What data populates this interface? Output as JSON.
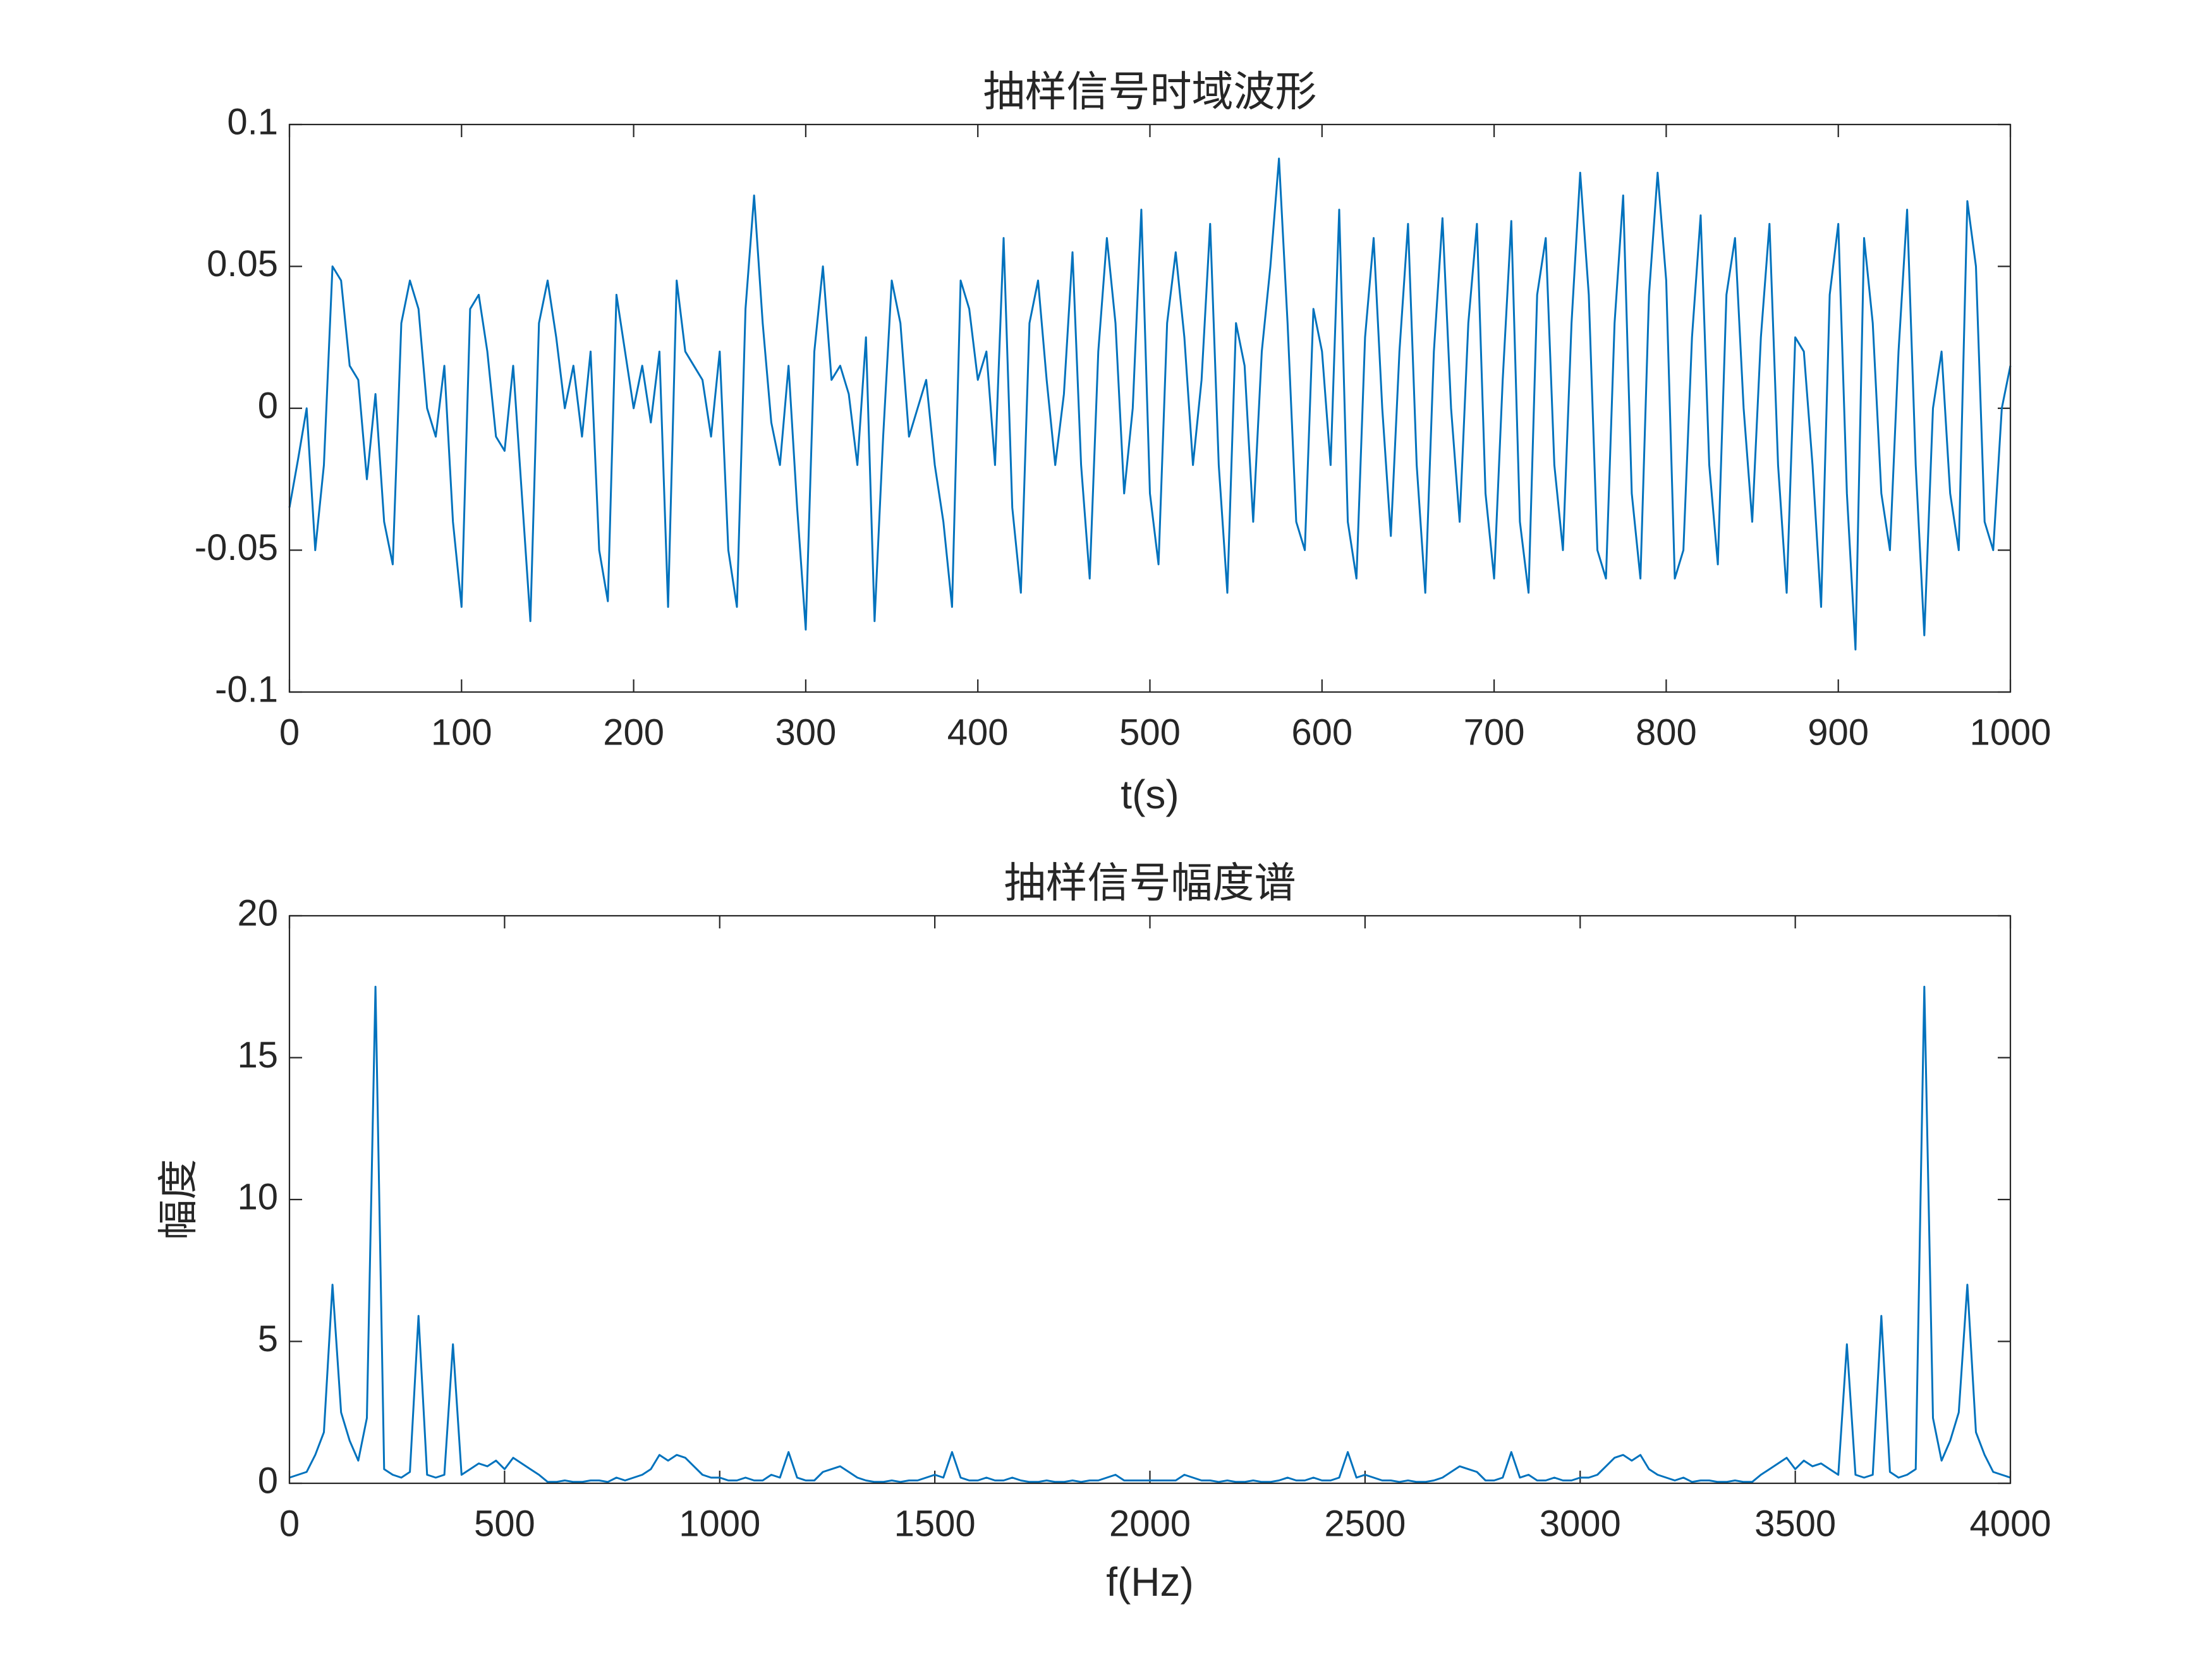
{
  "chart_data": [
    {
      "type": "line",
      "title": "抽样信号时域波形",
      "xlabel": "t(s)",
      "x": [
        0,
        5,
        10,
        15,
        20,
        25,
        30,
        35,
        40,
        45,
        50,
        55,
        60,
        65,
        70,
        75,
        80,
        85,
        90,
        95,
        100,
        105,
        110,
        115,
        120,
        125,
        130,
        135,
        140,
        145,
        150,
        155,
        160,
        165,
        170,
        175,
        180,
        185,
        190,
        195,
        200,
        205,
        210,
        215,
        220,
        225,
        230,
        235,
        240,
        245,
        250,
        255,
        260,
        265,
        270,
        275,
        280,
        285,
        290,
        295,
        300,
        305,
        310,
        315,
        320,
        325,
        330,
        335,
        340,
        345,
        350,
        355,
        360,
        365,
        370,
        375,
        380,
        385,
        390,
        395,
        400,
        405,
        410,
        415,
        420,
        425,
        430,
        435,
        440,
        445,
        450,
        455,
        460,
        465,
        470,
        475,
        480,
        485,
        490,
        495,
        500,
        505,
        510,
        515,
        520,
        525,
        530,
        535,
        540,
        545,
        550,
        555,
        560,
        565,
        570,
        575,
        580,
        585,
        590,
        595,
        600,
        605,
        610,
        615,
        620,
        625,
        630,
        635,
        640,
        645,
        650,
        655,
        660,
        665,
        670,
        675,
        680,
        685,
        690,
        695,
        700,
        705,
        710,
        715,
        720,
        725,
        730,
        735,
        740,
        745,
        750,
        755,
        760,
        765,
        770,
        775,
        780,
        785,
        790,
        795,
        800,
        805,
        810,
        815,
        820,
        825,
        830,
        835,
        840,
        845,
        850,
        855,
        860,
        865,
        870,
        875,
        880,
        885,
        890,
        895,
        900,
        905,
        910,
        915,
        920,
        925,
        930,
        935,
        940,
        945,
        950,
        955,
        960,
        965,
        970,
        975,
        980,
        985,
        990,
        995,
        1000
      ],
      "series": [
        {
          "color": "#0072bd",
          "values": [
            -0.035,
            -0.018,
            0.0,
            -0.05,
            -0.02,
            0.05,
            0.045,
            0.015,
            0.01,
            -0.025,
            0.005,
            -0.04,
            -0.055,
            0.03,
            0.045,
            0.035,
            0.0,
            -0.01,
            0.015,
            -0.04,
            -0.07,
            0.035,
            0.04,
            0.02,
            -0.01,
            -0.015,
            0.015,
            -0.03,
            -0.075,
            0.03,
            0.045,
            0.025,
            0.0,
            0.015,
            -0.01,
            0.02,
            -0.05,
            -0.068,
            0.04,
            0.02,
            0.0,
            0.015,
            -0.005,
            0.02,
            -0.07,
            0.045,
            0.02,
            0.015,
            0.01,
            -0.01,
            0.02,
            -0.05,
            -0.07,
            0.035,
            0.075,
            0.03,
            -0.005,
            -0.02,
            0.015,
            -0.035,
            -0.078,
            0.02,
            0.05,
            0.01,
            0.015,
            0.005,
            -0.02,
            0.025,
            -0.075,
            -0.01,
            0.045,
            0.03,
            -0.01,
            0.0,
            0.01,
            -0.02,
            -0.04,
            -0.07,
            0.045,
            0.035,
            0.01,
            0.02,
            -0.02,
            0.06,
            -0.035,
            -0.065,
            0.03,
            0.045,
            0.01,
            -0.02,
            0.005,
            0.055,
            -0.02,
            -0.06,
            0.02,
            0.06,
            0.03,
            -0.03,
            0.0,
            0.07,
            -0.03,
            -0.055,
            0.03,
            0.055,
            0.025,
            -0.02,
            0.01,
            0.065,
            -0.02,
            -0.065,
            0.03,
            0.015,
            -0.04,
            0.02,
            0.05,
            0.088,
            0.03,
            -0.04,
            -0.05,
            0.035,
            0.02,
            -0.02,
            0.07,
            -0.04,
            -0.06,
            0.025,
            0.06,
            0.0,
            -0.045,
            0.02,
            0.065,
            -0.02,
            -0.065,
            0.02,
            0.067,
            0.0,
            -0.04,
            0.03,
            0.065,
            -0.03,
            -0.06,
            0.01,
            0.066,
            -0.04,
            -0.065,
            0.04,
            0.06,
            -0.02,
            -0.05,
            0.03,
            0.083,
            0.04,
            -0.05,
            -0.06,
            0.03,
            0.075,
            -0.03,
            -0.06,
            0.04,
            0.083,
            0.045,
            -0.06,
            -0.05,
            0.025,
            0.068,
            -0.02,
            -0.055,
            0.04,
            0.06,
            0.0,
            -0.04,
            0.025,
            0.065,
            -0.02,
            -0.065,
            0.025,
            0.02,
            -0.02,
            -0.07,
            0.04,
            0.065,
            -0.03,
            -0.085,
            0.06,
            0.03,
            -0.03,
            -0.05,
            0.02,
            0.07,
            -0.02,
            -0.08,
            0.0,
            0.02,
            -0.03,
            -0.05,
            0.073,
            0.05,
            -0.04,
            -0.05,
            0.0,
            0.015
          ]
        }
      ],
      "xlim": [
        0,
        1000
      ],
      "xticks": [
        0,
        100,
        200,
        300,
        400,
        500,
        600,
        700,
        800,
        900,
        1000
      ],
      "ylim": [
        -0.1,
        0.1
      ],
      "yticks": [
        -0.1,
        -0.05,
        0,
        0.05,
        0.1
      ],
      "grid": false
    },
    {
      "type": "line",
      "title": "抽样信号幅度谱",
      "xlabel": "f(Hz)",
      "ylabel": "幅度",
      "x": [
        0,
        20,
        40,
        60,
        80,
        100,
        120,
        140,
        160,
        180,
        200,
        220,
        240,
        260,
        280,
        300,
        320,
        340,
        360,
        380,
        400,
        420,
        440,
        460,
        480,
        500,
        520,
        540,
        560,
        580,
        600,
        620,
        640,
        660,
        680,
        700,
        720,
        740,
        760,
        780,
        800,
        820,
        840,
        860,
        880,
        900,
        920,
        940,
        960,
        980,
        1000,
        1020,
        1040,
        1060,
        1080,
        1100,
        1120,
        1140,
        1160,
        1180,
        1200,
        1220,
        1240,
        1260,
        1280,
        1300,
        1320,
        1340,
        1360,
        1380,
        1400,
        1420,
        1440,
        1460,
        1480,
        1500,
        1520,
        1540,
        1560,
        1580,
        1600,
        1620,
        1640,
        1660,
        1680,
        1700,
        1720,
        1740,
        1760,
        1780,
        1800,
        1820,
        1840,
        1860,
        1880,
        1900,
        1920,
        1940,
        1960,
        1980,
        2000,
        2020,
        2040,
        2060,
        2080,
        2100,
        2120,
        2140,
        2160,
        2180,
        2200,
        2220,
        2240,
        2260,
        2280,
        2300,
        2320,
        2340,
        2360,
        2380,
        2400,
        2420,
        2440,
        2460,
        2480,
        2500,
        2520,
        2540,
        2560,
        2580,
        2600,
        2620,
        2640,
        2660,
        2680,
        2700,
        2720,
        2740,
        2760,
        2780,
        2800,
        2820,
        2840,
        2860,
        2880,
        2900,
        2920,
        2940,
        2960,
        2980,
        3000,
        3020,
        3040,
        3060,
        3080,
        3100,
        3120,
        3140,
        3160,
        3180,
        3200,
        3220,
        3240,
        3260,
        3280,
        3300,
        3320,
        3340,
        3360,
        3380,
        3400,
        3420,
        3440,
        3460,
        3480,
        3500,
        3520,
        3540,
        3560,
        3580,
        3600,
        3620,
        3640,
        3660,
        3680,
        3700,
        3720,
        3740,
        3760,
        3780,
        3800,
        3820,
        3840,
        3860,
        3880,
        3900,
        3920,
        3940,
        3960,
        3980,
        4000
      ],
      "series": [
        {
          "color": "#0072bd",
          "values": [
            0.2,
            0.3,
            0.4,
            1.0,
            1.8,
            7.0,
            2.5,
            1.5,
            0.8,
            2.3,
            17.5,
            0.5,
            0.3,
            0.2,
            0.4,
            5.9,
            0.3,
            0.2,
            0.3,
            4.9,
            0.3,
            0.5,
            0.7,
            0.6,
            0.8,
            0.5,
            0.9,
            0.7,
            0.5,
            0.3,
            0.05,
            0.05,
            0.1,
            0.05,
            0.05,
            0.1,
            0.1,
            0.05,
            0.2,
            0.1,
            0.2,
            0.3,
            0.5,
            1.0,
            0.8,
            1.0,
            0.9,
            0.6,
            0.3,
            0.2,
            0.2,
            0.1,
            0.1,
            0.2,
            0.1,
            0.1,
            0.3,
            0.2,
            1.1,
            0.2,
            0.1,
            0.1,
            0.4,
            0.5,
            0.6,
            0.4,
            0.2,
            0.1,
            0.05,
            0.05,
            0.1,
            0.05,
            0.1,
            0.1,
            0.2,
            0.3,
            0.2,
            1.1,
            0.2,
            0.1,
            0.1,
            0.2,
            0.1,
            0.1,
            0.2,
            0.1,
            0.05,
            0.05,
            0.1,
            0.05,
            0.05,
            0.1,
            0.05,
            0.1,
            0.1,
            0.2,
            0.3,
            0.1,
            0.1,
            0.1,
            0.1,
            0.1,
            0.1,
            0.1,
            0.3,
            0.2,
            0.1,
            0.1,
            0.05,
            0.1,
            0.05,
            0.05,
            0.1,
            0.05,
            0.05,
            0.1,
            0.2,
            0.1,
            0.1,
            0.2,
            0.1,
            0.1,
            0.2,
            1.1,
            0.2,
            0.3,
            0.2,
            0.1,
            0.1,
            0.05,
            0.1,
            0.05,
            0.05,
            0.1,
            0.2,
            0.4,
            0.6,
            0.5,
            0.4,
            0.1,
            0.1,
            0.2,
            1.1,
            0.2,
            0.3,
            0.1,
            0.1,
            0.2,
            0.1,
            0.1,
            0.2,
            0.2,
            0.3,
            0.6,
            0.9,
            1.0,
            0.8,
            1.0,
            0.5,
            0.3,
            0.2,
            0.1,
            0.2,
            0.05,
            0.1,
            0.1,
            0.05,
            0.05,
            0.1,
            0.05,
            0.05,
            0.3,
            0.5,
            0.7,
            0.9,
            0.5,
            0.8,
            0.6,
            0.7,
            0.5,
            0.3,
            4.9,
            0.3,
            0.2,
            0.3,
            5.9,
            0.4,
            0.2,
            0.3,
            0.5,
            17.5,
            2.3,
            0.8,
            1.5,
            2.5,
            7.0,
            1.8,
            1.0,
            0.4,
            0.3,
            0.2
          ]
        }
      ],
      "xlim": [
        0,
        4000
      ],
      "xticks": [
        0,
        500,
        1000,
        1500,
        2000,
        2500,
        3000,
        3500,
        4000
      ],
      "ylim": [
        0,
        20
      ],
      "yticks": [
        0,
        5,
        10,
        15,
        20
      ],
      "grid": false
    }
  ]
}
